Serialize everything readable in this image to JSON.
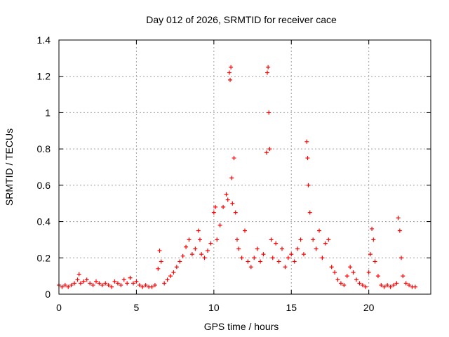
{
  "chart_data": {
    "type": "scatter",
    "title": "Day 012 of 2026, SRMTID for receiver cace",
    "xlabel": "GPS time / hours",
    "ylabel": "SRMTID / TECUs",
    "xlim": [
      0,
      24
    ],
    "ylim": [
      0,
      1.4
    ],
    "xticks": [
      0,
      5,
      10,
      15,
      20
    ],
    "xtick_labels": [
      "0",
      "5",
      "10",
      "15",
      "20"
    ],
    "yticks": [
      0,
      0.2,
      0.4,
      0.6,
      0.8,
      1.0,
      1.2,
      1.4
    ],
    "ytick_labels": [
      "0",
      "0.2",
      "0.4",
      "0.6",
      "0.8",
      "1",
      "1.2",
      "1.4"
    ],
    "grid": true,
    "marker": "+",
    "series_color": "#ff0000",
    "series": [
      {
        "name": "SRMTID",
        "x": [
          0.0,
          0.2,
          0.4,
          0.6,
          0.8,
          1.0,
          1.2,
          1.3,
          1.4,
          1.6,
          1.8,
          2.0,
          2.2,
          2.4,
          2.6,
          2.8,
          3.0,
          3.2,
          3.4,
          3.6,
          3.8,
          4.0,
          4.2,
          4.4,
          4.6,
          4.8,
          5.0,
          5.2,
          5.4,
          5.6,
          5.8,
          6.0,
          6.2,
          6.4,
          6.5,
          6.6,
          6.8,
          7.0,
          7.2,
          7.4,
          7.6,
          7.8,
          8.0,
          8.2,
          8.4,
          8.6,
          8.8,
          9.0,
          9.1,
          9.2,
          9.4,
          9.6,
          9.8,
          10.0,
          10.1,
          10.2,
          10.4,
          10.6,
          10.8,
          10.9,
          11.0,
          11.05,
          11.1,
          11.15,
          11.2,
          11.3,
          11.4,
          11.5,
          11.6,
          11.8,
          12.0,
          12.2,
          12.4,
          12.6,
          12.8,
          13.0,
          13.2,
          13.4,
          13.45,
          13.5,
          13.55,
          13.6,
          13.7,
          13.8,
          14.0,
          14.2,
          14.4,
          14.6,
          14.8,
          15.0,
          15.2,
          15.4,
          15.6,
          15.8,
          16.0,
          16.05,
          16.1,
          16.2,
          16.4,
          16.6,
          16.8,
          17.0,
          17.2,
          17.4,
          17.6,
          17.8,
          18.0,
          18.2,
          18.4,
          18.6,
          18.8,
          19.0,
          19.2,
          19.4,
          19.6,
          19.8,
          20.0,
          20.1,
          20.2,
          20.3,
          20.4,
          20.6,
          20.8,
          21.0,
          21.2,
          21.4,
          21.6,
          21.8,
          21.9,
          22.0,
          22.1,
          22.2,
          22.4,
          22.6,
          22.8,
          23.0
        ],
        "y": [
          0.05,
          0.04,
          0.05,
          0.04,
          0.05,
          0.06,
          0.08,
          0.11,
          0.06,
          0.07,
          0.08,
          0.06,
          0.05,
          0.07,
          0.06,
          0.05,
          0.06,
          0.05,
          0.04,
          0.07,
          0.06,
          0.05,
          0.08,
          0.06,
          0.09,
          0.06,
          0.07,
          0.05,
          0.04,
          0.05,
          0.04,
          0.04,
          0.05,
          0.14,
          0.24,
          0.18,
          0.06,
          0.08,
          0.1,
          0.12,
          0.15,
          0.18,
          0.21,
          0.26,
          0.3,
          0.22,
          0.25,
          0.35,
          0.3,
          0.22,
          0.2,
          0.24,
          0.28,
          0.45,
          0.48,
          0.3,
          0.38,
          0.48,
          0.55,
          0.52,
          1.22,
          1.18,
          1.25,
          0.64,
          0.5,
          0.75,
          0.45,
          0.3,
          0.25,
          0.2,
          0.35,
          0.18,
          0.15,
          0.2,
          0.25,
          0.18,
          0.22,
          0.78,
          1.22,
          1.25,
          1.0,
          0.8,
          0.3,
          0.2,
          0.28,
          0.18,
          0.25,
          0.15,
          0.2,
          0.22,
          0.18,
          0.25,
          0.3,
          0.22,
          0.84,
          0.75,
          0.6,
          0.45,
          0.3,
          0.25,
          0.35,
          0.2,
          0.28,
          0.3,
          0.15,
          0.12,
          0.08,
          0.06,
          0.05,
          0.1,
          0.15,
          0.12,
          0.08,
          0.06,
          0.05,
          0.04,
          0.12,
          0.22,
          0.36,
          0.3,
          0.18,
          0.1,
          0.05,
          0.04,
          0.05,
          0.04,
          0.05,
          0.06,
          0.42,
          0.35,
          0.2,
          0.1,
          0.06,
          0.05,
          0.04,
          0.04
        ]
      }
    ]
  }
}
